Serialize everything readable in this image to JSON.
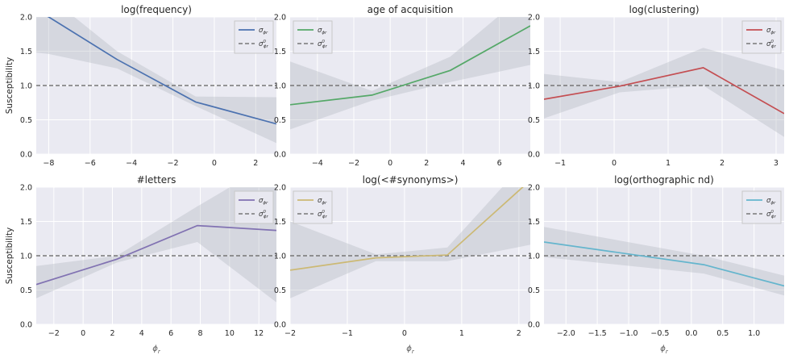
{
  "figure": {
    "ylabel": "Susceptibility",
    "xlabel": "ϕ",
    "xlabel_sub": "r",
    "grid": true,
    "background": "#eaeaf2",
    "band_color": "#b0b4be",
    "reference_color": "#777777"
  },
  "chart_data": [
    {
      "type": "line",
      "title": "log(frequency)",
      "color": "#4c72b0",
      "xlim": [
        -8.6,
        3.0
      ],
      "ylim": [
        0.0,
        2.0
      ],
      "xticks": [
        -8,
        -6,
        -4,
        -2,
        0,
        2
      ],
      "yticks": [
        0.0,
        0.5,
        1.0,
        1.5,
        2.0
      ],
      "legend": {
        "position": "top-right",
        "series_label": "σ",
        "series_sub": "ϕr",
        "ref_label": "σ",
        "ref_sup": "0",
        "ref_sub": "ϕr"
      },
      "series": {
        "x": [
          -8.6,
          -8.0,
          -4.7,
          -0.9,
          3.0
        ],
        "y": [
          2.1,
          2.0,
          1.38,
          0.76,
          0.44
        ],
        "lower": [
          1.48,
          1.46,
          1.25,
          0.7,
          0.16
        ],
        "upper": [
          2.45,
          2.3,
          1.5,
          0.84,
          0.83
        ]
      },
      "reference": 1.0
    },
    {
      "type": "line",
      "title": "age of acquisition",
      "color": "#55a868",
      "xlim": [
        -5.5,
        7.7
      ],
      "ylim": [
        0.0,
        2.0
      ],
      "xticks": [
        -4,
        -2,
        0,
        2,
        4,
        6
      ],
      "yticks": [
        0.0,
        0.5,
        1.0,
        1.5,
        2.0
      ],
      "legend": {
        "position": "top-left",
        "series_label": "σ",
        "series_sub": "ϕr",
        "ref_label": "σ",
        "ref_sup": "0",
        "ref_sub": "ϕr"
      },
      "series": {
        "x": [
          -5.5,
          -1.0,
          3.3,
          7.7
        ],
        "y": [
          0.72,
          0.86,
          1.22,
          1.87
        ],
        "lower": [
          0.36,
          0.78,
          1.05,
          1.3
        ],
        "upper": [
          1.35,
          0.92,
          1.42,
          2.4
        ]
      },
      "reference": 1.0
    },
    {
      "type": "line",
      "title": "log(clustering)",
      "color": "#c44e52",
      "xlim": [
        -1.3,
        3.15
      ],
      "ylim": [
        0.0,
        2.0
      ],
      "xticks": [
        -1,
        0,
        1,
        2,
        3
      ],
      "yticks": [
        0.0,
        0.5,
        1.0,
        1.5,
        2.0
      ],
      "legend": {
        "position": "top-right",
        "series_label": "σ",
        "series_sub": "ϕr",
        "ref_label": "σ",
        "ref_sup": "0",
        "ref_sub": "ϕr"
      },
      "series": {
        "x": [
          -1.3,
          0.1,
          1.65,
          3.15
        ],
        "y": [
          0.8,
          0.99,
          1.26,
          0.59
        ],
        "lower": [
          0.52,
          0.9,
          1.0,
          0.25
        ],
        "upper": [
          1.17,
          1.05,
          1.55,
          1.22
        ]
      },
      "reference": 1.0
    },
    {
      "type": "line",
      "title": "#letters",
      "color": "#8172b2",
      "xlim": [
        -3.2,
        13.2
      ],
      "ylim": [
        0.0,
        2.0
      ],
      "xticks": [
        -2,
        0,
        2,
        4,
        6,
        8,
        10,
        12
      ],
      "yticks": [
        0.0,
        0.5,
        1.0,
        1.5,
        2.0
      ],
      "legend": {
        "position": "top-right",
        "series_label": "σ",
        "series_sub": "ϕr",
        "ref_label": "σ",
        "ref_sup": "0",
        "ref_sub": "ϕr"
      },
      "series": {
        "x": [
          -3.2,
          2.3,
          7.8,
          13.2
        ],
        "y": [
          0.58,
          0.95,
          1.44,
          1.37
        ],
        "lower": [
          0.38,
          0.9,
          1.2,
          0.32
        ],
        "upper": [
          0.85,
          1.0,
          1.72,
          2.4
        ]
      },
      "reference": 1.0
    },
    {
      "type": "line",
      "title": "log(<#synonyms>)",
      "color": "#ccb974",
      "xlim": [
        -2.0,
        2.2
      ],
      "ylim": [
        0.0,
        2.0
      ],
      "xticks": [
        -2,
        -1,
        0,
        1,
        2
      ],
      "yticks": [
        0.0,
        0.5,
        1.0,
        1.5,
        2.0
      ],
      "legend": {
        "position": "top-left",
        "series_label": "σ",
        "series_sub": "ϕr",
        "ref_label": "σ",
        "ref_sup": "0",
        "ref_sub": "ϕr"
      },
      "series": {
        "x": [
          -2.0,
          -0.5,
          0.75,
          2.2
        ],
        "y": [
          0.79,
          0.97,
          1.01,
          2.1
        ],
        "lower": [
          0.38,
          0.92,
          0.92,
          1.16
        ],
        "upper": [
          1.5,
          1.02,
          1.12,
          2.45
        ]
      },
      "reference": 1.0
    },
    {
      "type": "line",
      "title": "log(orthographic nd)",
      "color": "#64b5cd",
      "xlim": [
        -2.35,
        1.48
      ],
      "ylim": [
        0.0,
        2.0
      ],
      "xticks": [
        -2.0,
        -1.5,
        -1.0,
        -0.5,
        0.0,
        0.5,
        1.0
      ],
      "xtick_labels": [
        "−2.0",
        "−1.5",
        "−1.0",
        "−0.5",
        "0.0",
        "0.5",
        "1.0"
      ],
      "yticks": [
        0.0,
        0.5,
        1.0,
        1.5,
        2.0
      ],
      "legend": {
        "position": "top-right",
        "series_label": "σ",
        "series_sub": "ϕr",
        "ref_label": "σ",
        "ref_sup": "0",
        "ref_sub": "ϕr"
      },
      "series": {
        "x": [
          -2.35,
          0.2,
          1.48
        ],
        "y": [
          1.2,
          0.87,
          0.56
        ],
        "lower": [
          0.98,
          0.74,
          0.42
        ],
        "upper": [
          1.42,
          1.0,
          0.71
        ]
      },
      "reference": 1.0
    }
  ]
}
